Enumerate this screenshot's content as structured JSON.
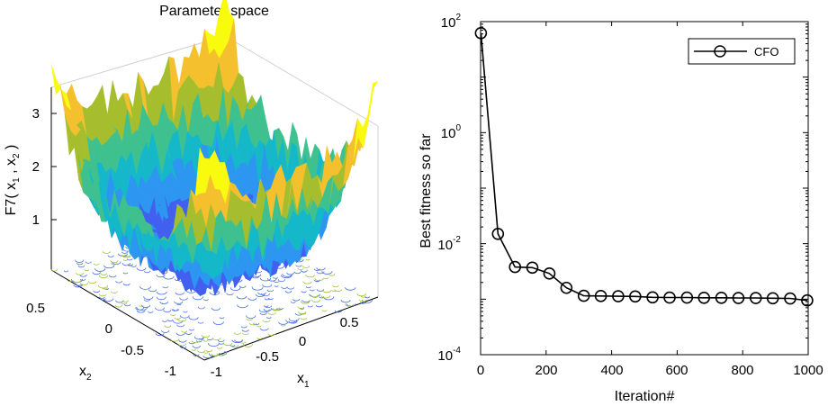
{
  "chart_data": [
    {
      "type": "surface",
      "title": "Parameter space",
      "zlabel": {
        "main": "F7(  x",
        "sub1": "1",
        "mid": " ,  x",
        "sub2": "2",
        "end": " )"
      },
      "xlabel": {
        "main": "x",
        "sub": "1"
      },
      "ylabel": {
        "main": "x",
        "sub": "2"
      },
      "x_ticks": [
        "-1",
        "-0.5",
        "0",
        "0.5"
      ],
      "y_ticks": [
        "-1",
        "-0.5",
        "0",
        "0.5"
      ],
      "z_ticks": [
        "1",
        "2",
        "3"
      ],
      "xlim": [
        -1,
        1
      ],
      "ylim": [
        -1,
        1
      ],
      "zlim": [
        0,
        3.5
      ],
      "colormap": [
        "#3e26a8",
        "#4260f0",
        "#2c96f0",
        "#15b8c9",
        "#3ec18f",
        "#a6be2d",
        "#f5c02e",
        "#f9fb0e"
      ]
    },
    {
      "type": "line",
      "yscale": "log",
      "xlabel": "Iteration#",
      "ylabel": "Best fitness so far",
      "xlim": [
        0,
        1000
      ],
      "ylim_exp": [
        -4,
        2
      ],
      "x_ticks": [
        "0",
        "200",
        "400",
        "600",
        "800",
        "1000"
      ],
      "y_ticks": [
        {
          "base": "10",
          "exp": "-4"
        },
        {
          "base": "10",
          "exp": "-2"
        },
        {
          "base": "10",
          "exp": "0"
        },
        {
          "base": "10",
          "exp": "2"
        }
      ],
      "series": [
        {
          "name": "CFO",
          "x": [
            1,
            53,
            105,
            158,
            210,
            262,
            315,
            367,
            420,
            472,
            525,
            577,
            630,
            682,
            735,
            787,
            840,
            892,
            945,
            997
          ],
          "y": [
            62,
            0.015,
            0.0038,
            0.0037,
            0.0029,
            0.0016,
            0.00115,
            0.00114,
            0.00113,
            0.00112,
            0.00108,
            0.00107,
            0.00107,
            0.00106,
            0.00106,
            0.00105,
            0.00105,
            0.00104,
            0.00103,
            0.00095
          ]
        }
      ],
      "legend": {
        "position": "top-right",
        "label": "CFO"
      }
    }
  ]
}
